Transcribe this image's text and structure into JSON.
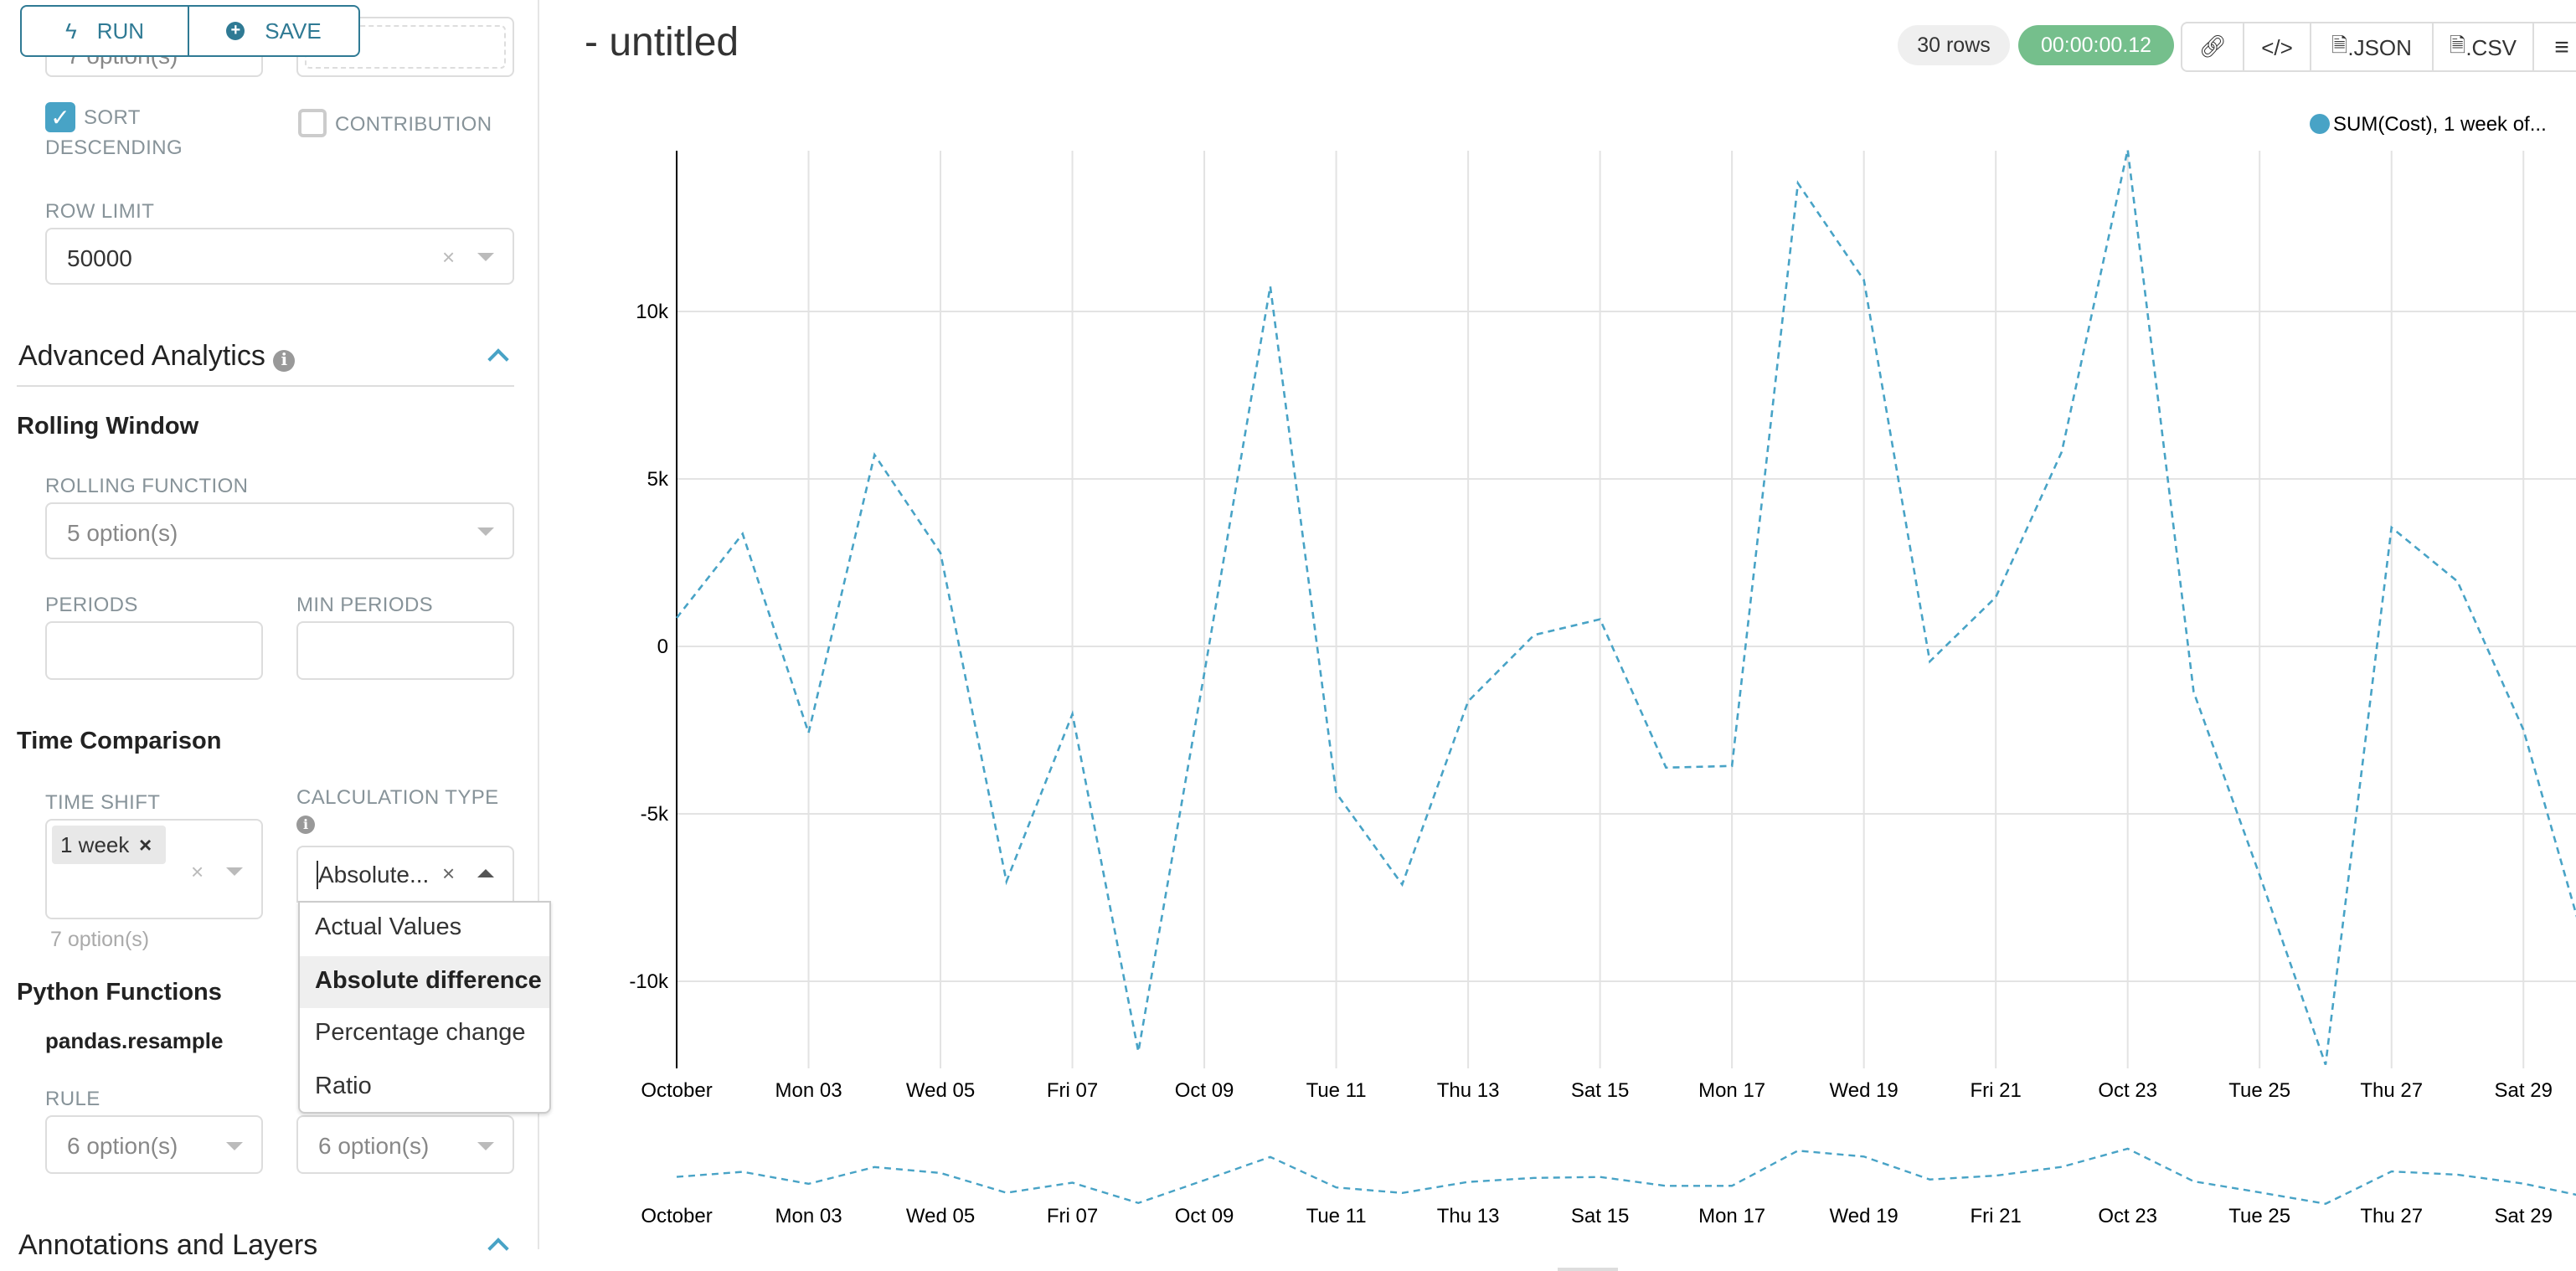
{
  "toolbar": {
    "run_label": "RUN",
    "save_label": "SAVE"
  },
  "sidebar": {
    "top_select_value": "7 option(s)",
    "sort_descending": {
      "label_line1": "SORT",
      "label_line2": "DESCENDING",
      "checked": true
    },
    "contribution": {
      "label": "CONTRIBUTION",
      "checked": false
    },
    "row_limit": {
      "label": "ROW LIMIT",
      "value": "50000"
    },
    "advanced_analytics": {
      "title": "Advanced Analytics",
      "expanded": true
    },
    "rolling_window": {
      "title": "Rolling Window",
      "rolling_function_label": "ROLLING FUNCTION",
      "rolling_function_placeholder": "5 option(s)",
      "periods_label": "PERIODS",
      "min_periods_label": "MIN PERIODS",
      "periods_value": "",
      "min_periods_value": ""
    },
    "time_comparison": {
      "title": "Time Comparison",
      "time_shift_label": "TIME SHIFT",
      "time_shift_tags": [
        "1 week"
      ],
      "time_shift_hint": "7 option(s)",
      "calculation_type_label": "CALCULATION TYPE",
      "calculation_type_value": "Absolute...",
      "calculation_options": [
        "Actual Values",
        "Absolute difference",
        "Percentage change",
        "Ratio"
      ],
      "highlighted_option": "Absolute difference"
    },
    "python_functions": {
      "title": "Python Functions",
      "subtitle": "pandas.resample",
      "rule_label": "RULE",
      "rule_placeholder": "6 option(s)",
      "method_placeholder": "6 option(s)"
    },
    "annotations": {
      "title": "Annotations and Layers",
      "expanded": true
    }
  },
  "header": {
    "title": "- untitled",
    "rows_badge": "30 rows",
    "timer": "00:00:00.12",
    "json_label": ".JSON",
    "csv_label": ".CSV"
  },
  "colors": {
    "accent": "#48a3c6",
    "series": "#48a3c6",
    "timer_bg": "#75bf8c",
    "button_border": "#2f7a94"
  },
  "chart_data": {
    "type": "line",
    "legend": {
      "entries": [
        "SUM(Cost), 1 week of..."
      ],
      "placement": "top-right"
    },
    "x": [
      "Oct 01",
      "Oct 02",
      "Oct 03",
      "Oct 04",
      "Oct 05",
      "Oct 06",
      "Oct 07",
      "Oct 08",
      "Oct 09",
      "Oct 10",
      "Oct 11",
      "Oct 12",
      "Oct 13",
      "Oct 14",
      "Oct 15",
      "Oct 16",
      "Oct 17",
      "Oct 18",
      "Oct 19",
      "Oct 20",
      "Oct 21",
      "Oct 22",
      "Oct 23",
      "Oct 24",
      "Oct 25",
      "Oct 26",
      "Oct 27",
      "Oct 28",
      "Oct 29",
      "Oct 30"
    ],
    "series": [
      {
        "name": "SUM(Cost), 1 week of...",
        "line_style": "dashed",
        "values": [
          850,
          3360,
          -2580,
          5720,
          2790,
          -7020,
          -2020,
          -12100,
          -800,
          10750,
          -4380,
          -7110,
          -1640,
          340,
          810,
          -3620,
          -3570,
          13830,
          10940,
          -450,
          1470,
          5810,
          14830,
          -1360,
          -6830,
          -12490,
          3550,
          1940,
          -2490,
          -9380
        ]
      }
    ],
    "x_tick_labels": [
      "October",
      "Mon 03",
      "Wed 05",
      "Fri 07",
      "Oct 09",
      "Tue 11",
      "Thu 13",
      "Sat 15",
      "Mon 17",
      "Wed 19",
      "Fri 21",
      "Oct 23",
      "Tue 25",
      "Thu 27",
      "Sat 29"
    ],
    "y_ticks": [
      -10000,
      -5000,
      0,
      5000,
      10000
    ],
    "y_tick_labels": [
      "-10k",
      "-5k",
      "0",
      "5k",
      "10k"
    ],
    "ylim": [
      -12600,
      14800
    ],
    "grid": true,
    "preview_brush": true
  }
}
